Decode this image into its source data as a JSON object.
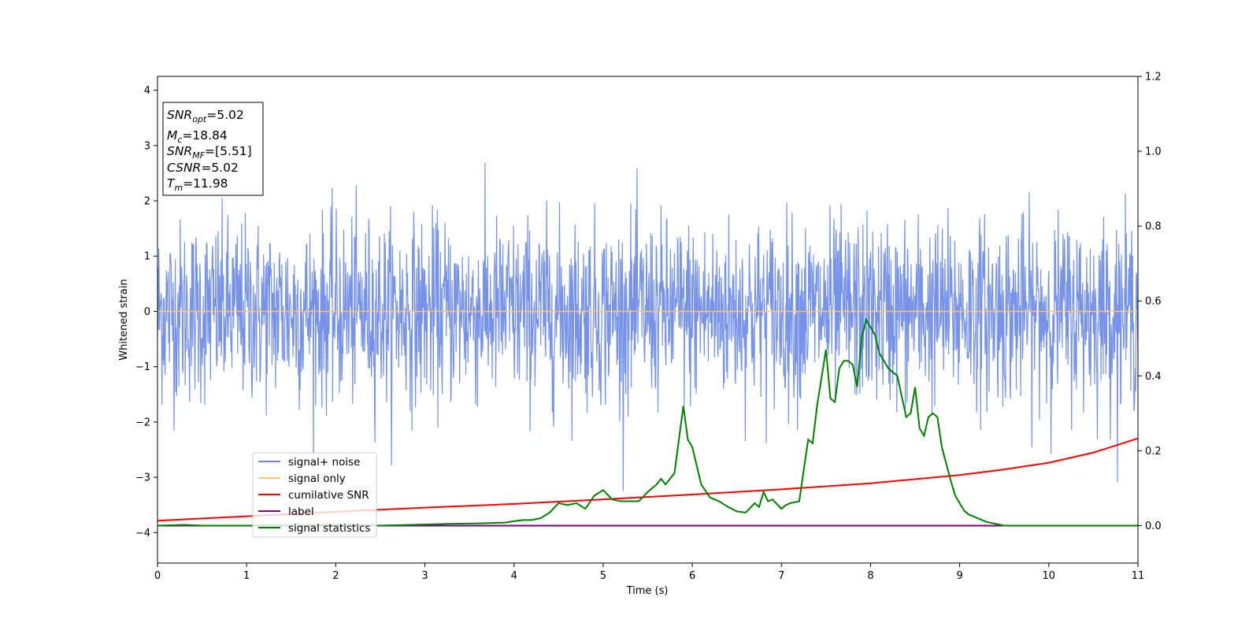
{
  "chart_data": {
    "type": "line",
    "xlabel": "Time (s)",
    "ylabel": "Whitened strain",
    "xlim": [
      0,
      11
    ],
    "ylim_left": [
      -4.55,
      4.25
    ],
    "ylim_right": [
      -0.1,
      1.2
    ],
    "x_ticks": [
      0,
      1,
      2,
      3,
      4,
      5,
      6,
      7,
      8,
      9,
      10,
      11
    ],
    "y_ticks_left": [
      -4,
      -3,
      -2,
      -1,
      0,
      1,
      2,
      3,
      4
    ],
    "y_ticks_left_labels": [
      "−4",
      "−3",
      "−2",
      "−1",
      "0",
      "1",
      "2",
      "3",
      "4"
    ],
    "y_ticks_right": [
      0.0,
      0.2,
      0.4,
      0.6,
      0.8,
      1.0,
      1.2
    ],
    "y_ticks_right_labels": [
      "0.0",
      "0.2",
      "0.4",
      "0.6",
      "0.8",
      "1.0",
      "1.2"
    ],
    "grid": false,
    "legend_position": "lower-left",
    "annotation": [
      {
        "name": "SNR",
        "sub": "opt",
        "rest": "=5.02"
      },
      {
        "name": "M",
        "sub": "c",
        "rest": "=18.84"
      },
      {
        "name": "SNR",
        "sub": "MF",
        "rest": "=[5.51]"
      },
      {
        "name": "CSNR",
        "sub": "",
        "rest": "=5.02"
      },
      {
        "name": "T",
        "sub": "m",
        "rest": "=11.98"
      }
    ],
    "series": [
      {
        "name": "signal+ noise",
        "axis": "left",
        "color": "#6f8de8",
        "description_values": {
          "mean": 0.0,
          "typical_range": [
            -1.6,
            1.6
          ],
          "max": 2.9,
          "min": -3.25,
          "n_samples": 2200
        }
      },
      {
        "name": "signal only",
        "axis": "left",
        "color": "#ffc56a",
        "x": [
          0,
          11
        ],
        "y": [
          0,
          0
        ]
      },
      {
        "name": "cumilative SNR",
        "axis": "right",
        "color": "#ff0000",
        "x": [
          0,
          1,
          2,
          3,
          4,
          5,
          6,
          7,
          8,
          9,
          9.5,
          10,
          10.5,
          11
        ],
        "y": [
          0.013,
          0.025,
          0.037,
          0.048,
          0.058,
          0.07,
          0.083,
          0.097,
          0.113,
          0.135,
          0.15,
          0.168,
          0.195,
          0.233
        ]
      },
      {
        "name": "label",
        "axis": "right",
        "color": "#800080",
        "x": [
          0,
          11
        ],
        "y": [
          0,
          0
        ]
      },
      {
        "name": "signal statistics",
        "axis": "right",
        "color": "#008000",
        "x": [
          0,
          0.3,
          0.5,
          1.0,
          1.5,
          2.0,
          2.5,
          3.0,
          3.3,
          3.6,
          3.9,
          4.0,
          4.1,
          4.2,
          4.3,
          4.4,
          4.5,
          4.6,
          4.7,
          4.8,
          4.9,
          5.0,
          5.1,
          5.2,
          5.3,
          5.4,
          5.5,
          5.6,
          5.65,
          5.7,
          5.8,
          5.9,
          5.95,
          6.0,
          6.1,
          6.2,
          6.3,
          6.4,
          6.5,
          6.6,
          6.7,
          6.75,
          6.8,
          6.85,
          6.9,
          7.0,
          7.05,
          7.1,
          7.2,
          7.3,
          7.35,
          7.4,
          7.5,
          7.55,
          7.6,
          7.65,
          7.7,
          7.75,
          7.8,
          7.85,
          7.9,
          7.95,
          8.0,
          8.05,
          8.1,
          8.15,
          8.2,
          8.3,
          8.4,
          8.45,
          8.5,
          8.55,
          8.6,
          8.65,
          8.7,
          8.75,
          8.8,
          8.9,
          8.95,
          9.0,
          9.05,
          9.1,
          9.2,
          9.3,
          9.5,
          9.8,
          10.5,
          11.0
        ],
        "y": [
          0.0,
          0.002,
          0.0,
          0.0,
          0.0,
          0.002,
          0.0,
          0.003,
          0.005,
          0.006,
          0.008,
          0.012,
          0.015,
          0.015,
          0.02,
          0.035,
          0.06,
          0.055,
          0.06,
          0.045,
          0.08,
          0.095,
          0.07,
          0.065,
          0.065,
          0.065,
          0.09,
          0.11,
          0.125,
          0.11,
          0.14,
          0.32,
          0.23,
          0.21,
          0.11,
          0.075,
          0.065,
          0.05,
          0.038,
          0.035,
          0.06,
          0.05,
          0.09,
          0.065,
          0.07,
          0.045,
          0.055,
          0.06,
          0.065,
          0.23,
          0.22,
          0.32,
          0.47,
          0.34,
          0.33,
          0.42,
          0.44,
          0.44,
          0.43,
          0.37,
          0.5,
          0.55,
          0.53,
          0.51,
          0.46,
          0.44,
          0.42,
          0.4,
          0.29,
          0.3,
          0.37,
          0.26,
          0.24,
          0.29,
          0.3,
          0.29,
          0.21,
          0.12,
          0.08,
          0.06,
          0.04,
          0.03,
          0.02,
          0.01,
          0.0,
          0.0,
          0.0,
          0.0
        ]
      }
    ]
  }
}
